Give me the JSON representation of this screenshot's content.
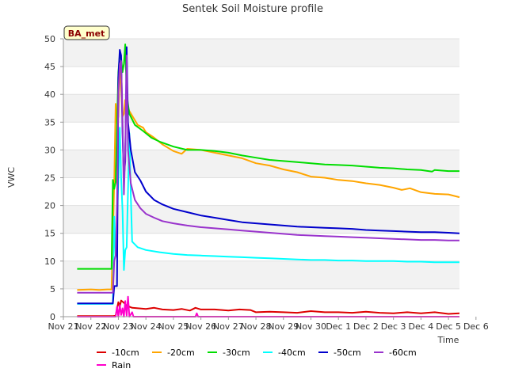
{
  "chart_data": {
    "type": "line",
    "title": "Sentek Soil Moisture profile",
    "xlabel": "Time",
    "ylabel": "VWC",
    "ylim": [
      0,
      50
    ],
    "xlim": [
      0,
      16
    ],
    "yticks": [
      0,
      5,
      10,
      15,
      20,
      25,
      30,
      35,
      40,
      45,
      50
    ],
    "xticks": [
      {
        "x": 0,
        "label": "Nov 21"
      },
      {
        "x": 1,
        "label": "Nov 22"
      },
      {
        "x": 2,
        "label": "Nov 23"
      },
      {
        "x": 3,
        "label": "Nov 24"
      },
      {
        "x": 4,
        "label": "Nov 25"
      },
      {
        "x": 5,
        "label": "Nov 26"
      },
      {
        "x": 6,
        "label": "Nov 27"
      },
      {
        "x": 7,
        "label": "Nov 28"
      },
      {
        "x": 8,
        "label": "Nov 29"
      },
      {
        "x": 9,
        "label": "Nov 30"
      },
      {
        "x": 10,
        "label": "Dec 1"
      },
      {
        "x": 11,
        "label": "Dec 2"
      },
      {
        "x": 12,
        "label": "Dec 3"
      },
      {
        "x": 13,
        "label": "Dec 4"
      },
      {
        "x": 14,
        "label": "Dec 5"
      },
      {
        "x": 15,
        "label": "Dec 6"
      }
    ],
    "site_label": "BA_met",
    "grid": true,
    "legend_position": "bottom",
    "background_bands": "#f2f2f2",
    "series": [
      {
        "name": "-10cm",
        "color": "#dd0000",
        "points": [
          [
            0.5,
            0.1
          ],
          [
            1.8,
            0.1
          ],
          [
            1.9,
            0.2
          ],
          [
            2.0,
            2.6
          ],
          [
            2.05,
            1.8
          ],
          [
            2.1,
            2.9
          ],
          [
            2.2,
            2.5
          ],
          [
            2.3,
            2.0
          ],
          [
            2.5,
            1.6
          ],
          [
            3.0,
            1.4
          ],
          [
            3.3,
            1.6
          ],
          [
            3.6,
            1.3
          ],
          [
            4.0,
            1.2
          ],
          [
            4.3,
            1.4
          ],
          [
            4.6,
            1.1
          ],
          [
            4.8,
            1.6
          ],
          [
            5.0,
            1.3
          ],
          [
            5.5,
            1.3
          ],
          [
            6.0,
            1.1
          ],
          [
            6.4,
            1.3
          ],
          [
            6.8,
            1.2
          ],
          [
            7.0,
            0.8
          ],
          [
            7.5,
            0.9
          ],
          [
            8.0,
            0.8
          ],
          [
            8.5,
            0.7
          ],
          [
            9.0,
            1.0
          ],
          [
            9.5,
            0.8
          ],
          [
            10.0,
            0.8
          ],
          [
            10.5,
            0.7
          ],
          [
            11.0,
            0.9
          ],
          [
            11.5,
            0.7
          ],
          [
            12.0,
            0.6
          ],
          [
            12.5,
            0.8
          ],
          [
            13.0,
            0.6
          ],
          [
            13.5,
            0.8
          ],
          [
            14.0,
            0.5
          ],
          [
            14.4,
            0.6
          ]
        ]
      },
      {
        "name": "-20cm",
        "color": "#ffa500",
        "points": [
          [
            0.5,
            4.8
          ],
          [
            1.0,
            4.9
          ],
          [
            1.3,
            4.8
          ],
          [
            1.6,
            4.9
          ],
          [
            1.75,
            4.9
          ],
          [
            1.85,
            24.0
          ],
          [
            1.9,
            38.3
          ],
          [
            1.95,
            34.8
          ],
          [
            2.0,
            36.0
          ],
          [
            2.05,
            46.0
          ],
          [
            2.1,
            41.0
          ],
          [
            2.15,
            36.0
          ],
          [
            2.2,
            36.5
          ],
          [
            2.25,
            39.0
          ],
          [
            2.4,
            37.0
          ],
          [
            2.7,
            34.5
          ],
          [
            2.9,
            34.0
          ],
          [
            3.0,
            33.2
          ],
          [
            3.3,
            32.2
          ],
          [
            3.6,
            31.0
          ],
          [
            4.0,
            29.8
          ],
          [
            4.3,
            29.3
          ],
          [
            4.5,
            30.2
          ],
          [
            5.0,
            30.0
          ],
          [
            5.5,
            29.5
          ],
          [
            6.0,
            29.0
          ],
          [
            6.5,
            28.5
          ],
          [
            7.0,
            27.6
          ],
          [
            7.5,
            27.2
          ],
          [
            8.0,
            26.5
          ],
          [
            8.5,
            26.0
          ],
          [
            9.0,
            25.2
          ],
          [
            9.5,
            25.0
          ],
          [
            10.0,
            24.6
          ],
          [
            10.5,
            24.4
          ],
          [
            11.0,
            24.0
          ],
          [
            11.5,
            23.7
          ],
          [
            12.0,
            23.2
          ],
          [
            12.3,
            22.8
          ],
          [
            12.6,
            23.1
          ],
          [
            13.0,
            22.4
          ],
          [
            13.5,
            22.1
          ],
          [
            14.0,
            22.0
          ],
          [
            14.4,
            21.5
          ]
        ]
      },
      {
        "name": "-30cm",
        "color": "#00dd00",
        "points": [
          [
            0.5,
            8.6
          ],
          [
            1.0,
            8.6
          ],
          [
            1.5,
            8.6
          ],
          [
            1.75,
            8.6
          ],
          [
            1.8,
            24.6
          ],
          [
            1.85,
            23.0
          ],
          [
            1.9,
            24.2
          ],
          [
            2.0,
            44.0
          ],
          [
            2.05,
            47.0
          ],
          [
            2.1,
            46.5
          ],
          [
            2.15,
            44.0
          ],
          [
            2.2,
            45.5
          ],
          [
            2.25,
            49.0
          ],
          [
            2.3,
            40.0
          ],
          [
            2.4,
            36.5
          ],
          [
            2.6,
            34.5
          ],
          [
            2.9,
            33.4
          ],
          [
            3.2,
            32.2
          ],
          [
            3.5,
            31.5
          ],
          [
            4.0,
            30.6
          ],
          [
            4.5,
            30.0
          ],
          [
            5.0,
            30.0
          ],
          [
            5.5,
            29.8
          ],
          [
            6.0,
            29.5
          ],
          [
            6.5,
            29.0
          ],
          [
            7.0,
            28.6
          ],
          [
            7.5,
            28.2
          ],
          [
            8.0,
            28.0
          ],
          [
            8.5,
            27.8
          ],
          [
            9.0,
            27.6
          ],
          [
            9.5,
            27.4
          ],
          [
            10.0,
            27.3
          ],
          [
            10.5,
            27.2
          ],
          [
            11.0,
            27.0
          ],
          [
            11.5,
            26.8
          ],
          [
            12.0,
            26.7
          ],
          [
            12.5,
            26.5
          ],
          [
            13.0,
            26.4
          ],
          [
            13.4,
            26.1
          ],
          [
            13.5,
            26.4
          ],
          [
            14.0,
            26.2
          ],
          [
            14.4,
            26.2
          ]
        ]
      },
      {
        "name": "-40cm",
        "color": "#00ffff",
        "points": [
          [
            0.5,
            2.3
          ],
          [
            1.0,
            2.3
          ],
          [
            1.5,
            2.3
          ],
          [
            1.8,
            2.3
          ],
          [
            1.85,
            18.0
          ],
          [
            1.9,
            11.0
          ],
          [
            1.95,
            17.0
          ],
          [
            2.0,
            25.0
          ],
          [
            2.05,
            34.0
          ],
          [
            2.1,
            25.0
          ],
          [
            2.15,
            19.0
          ],
          [
            2.2,
            8.4
          ],
          [
            2.25,
            12.0
          ],
          [
            2.3,
            12.5
          ],
          [
            2.4,
            33.0
          ],
          [
            2.45,
            22.0
          ],
          [
            2.5,
            13.5
          ],
          [
            2.7,
            12.5
          ],
          [
            3.0,
            12.0
          ],
          [
            3.5,
            11.6
          ],
          [
            4.0,
            11.3
          ],
          [
            4.5,
            11.1
          ],
          [
            5.0,
            11.0
          ],
          [
            5.5,
            10.9
          ],
          [
            6.0,
            10.8
          ],
          [
            6.5,
            10.7
          ],
          [
            7.0,
            10.6
          ],
          [
            7.5,
            10.5
          ],
          [
            8.0,
            10.4
          ],
          [
            8.5,
            10.3
          ],
          [
            9.0,
            10.2
          ],
          [
            9.5,
            10.2
          ],
          [
            10.0,
            10.1
          ],
          [
            10.5,
            10.1
          ],
          [
            11.0,
            10.0
          ],
          [
            11.5,
            10.0
          ],
          [
            12.0,
            10.0
          ],
          [
            12.5,
            9.9
          ],
          [
            13.0,
            9.9
          ],
          [
            13.5,
            9.8
          ],
          [
            14.0,
            9.8
          ],
          [
            14.4,
            9.8
          ]
        ]
      },
      {
        "name": "-50cm",
        "color": "#0000cc",
        "points": [
          [
            0.5,
            2.4
          ],
          [
            1.0,
            2.4
          ],
          [
            1.5,
            2.4
          ],
          [
            1.8,
            2.4
          ],
          [
            1.85,
            5.5
          ],
          [
            1.95,
            5.5
          ],
          [
            2.0,
            43.0
          ],
          [
            2.05,
            48.0
          ],
          [
            2.1,
            47.0
          ],
          [
            2.15,
            33.0
          ],
          [
            2.2,
            25.0
          ],
          [
            2.25,
            28.0
          ],
          [
            2.3,
            48.5
          ],
          [
            2.35,
            35.0
          ],
          [
            2.45,
            30.0
          ],
          [
            2.6,
            26.0
          ],
          [
            2.8,
            24.5
          ],
          [
            3.0,
            22.5
          ],
          [
            3.3,
            21.0
          ],
          [
            3.6,
            20.2
          ],
          [
            4.0,
            19.4
          ],
          [
            4.5,
            18.8
          ],
          [
            5.0,
            18.2
          ],
          [
            5.5,
            17.8
          ],
          [
            6.0,
            17.4
          ],
          [
            6.5,
            17.0
          ],
          [
            7.0,
            16.8
          ],
          [
            7.5,
            16.6
          ],
          [
            8.0,
            16.4
          ],
          [
            8.5,
            16.2
          ],
          [
            9.0,
            16.1
          ],
          [
            9.5,
            16.0
          ],
          [
            10.0,
            15.9
          ],
          [
            10.5,
            15.8
          ],
          [
            11.0,
            15.6
          ],
          [
            11.5,
            15.5
          ],
          [
            12.0,
            15.4
          ],
          [
            12.5,
            15.3
          ],
          [
            13.0,
            15.2
          ],
          [
            13.5,
            15.2
          ],
          [
            14.0,
            15.1
          ],
          [
            14.4,
            15.0
          ]
        ]
      },
      {
        "name": "-60cm",
        "color": "#9933cc",
        "points": [
          [
            0.5,
            4.3
          ],
          [
            1.0,
            4.3
          ],
          [
            1.5,
            4.3
          ],
          [
            1.8,
            4.3
          ],
          [
            1.85,
            10.0
          ],
          [
            1.9,
            11.0
          ],
          [
            1.95,
            20.0
          ],
          [
            2.0,
            40.0
          ],
          [
            2.05,
            45.5
          ],
          [
            2.1,
            46.0
          ],
          [
            2.15,
            35.0
          ],
          [
            2.2,
            22.0
          ],
          [
            2.25,
            30.0
          ],
          [
            2.3,
            47.0
          ],
          [
            2.35,
            30.0
          ],
          [
            2.45,
            24.0
          ],
          [
            2.6,
            21.0
          ],
          [
            2.8,
            19.5
          ],
          [
            3.0,
            18.5
          ],
          [
            3.3,
            17.8
          ],
          [
            3.6,
            17.2
          ],
          [
            4.0,
            16.8
          ],
          [
            4.5,
            16.4
          ],
          [
            5.0,
            16.1
          ],
          [
            5.5,
            15.9
          ],
          [
            6.0,
            15.7
          ],
          [
            6.5,
            15.5
          ],
          [
            7.0,
            15.3
          ],
          [
            7.5,
            15.1
          ],
          [
            8.0,
            14.9
          ],
          [
            8.5,
            14.7
          ],
          [
            9.0,
            14.6
          ],
          [
            9.5,
            14.5
          ],
          [
            10.0,
            14.4
          ],
          [
            10.5,
            14.3
          ],
          [
            11.0,
            14.2
          ],
          [
            11.5,
            14.1
          ],
          [
            12.0,
            14.0
          ],
          [
            12.5,
            13.9
          ],
          [
            13.0,
            13.8
          ],
          [
            13.5,
            13.8
          ],
          [
            14.0,
            13.7
          ],
          [
            14.4,
            13.7
          ]
        ]
      },
      {
        "name": "Rain",
        "color": "#ff00cc",
        "points": [
          [
            0.5,
            0.0
          ],
          [
            1.7,
            0.0
          ],
          [
            1.9,
            0.0
          ],
          [
            1.95,
            1.8
          ],
          [
            2.0,
            0.0
          ],
          [
            2.05,
            2.1
          ],
          [
            2.1,
            0.3
          ],
          [
            2.15,
            1.5
          ],
          [
            2.2,
            0.0
          ],
          [
            2.25,
            2.8
          ],
          [
            2.3,
            0.2
          ],
          [
            2.35,
            3.6
          ],
          [
            2.4,
            0.0
          ],
          [
            2.5,
            0.8
          ],
          [
            2.55,
            0.0
          ],
          [
            2.8,
            0.0
          ],
          [
            4.8,
            0.0
          ],
          [
            4.85,
            0.6
          ],
          [
            4.9,
            0.0
          ],
          [
            14.4,
            0.0
          ]
        ]
      }
    ]
  }
}
